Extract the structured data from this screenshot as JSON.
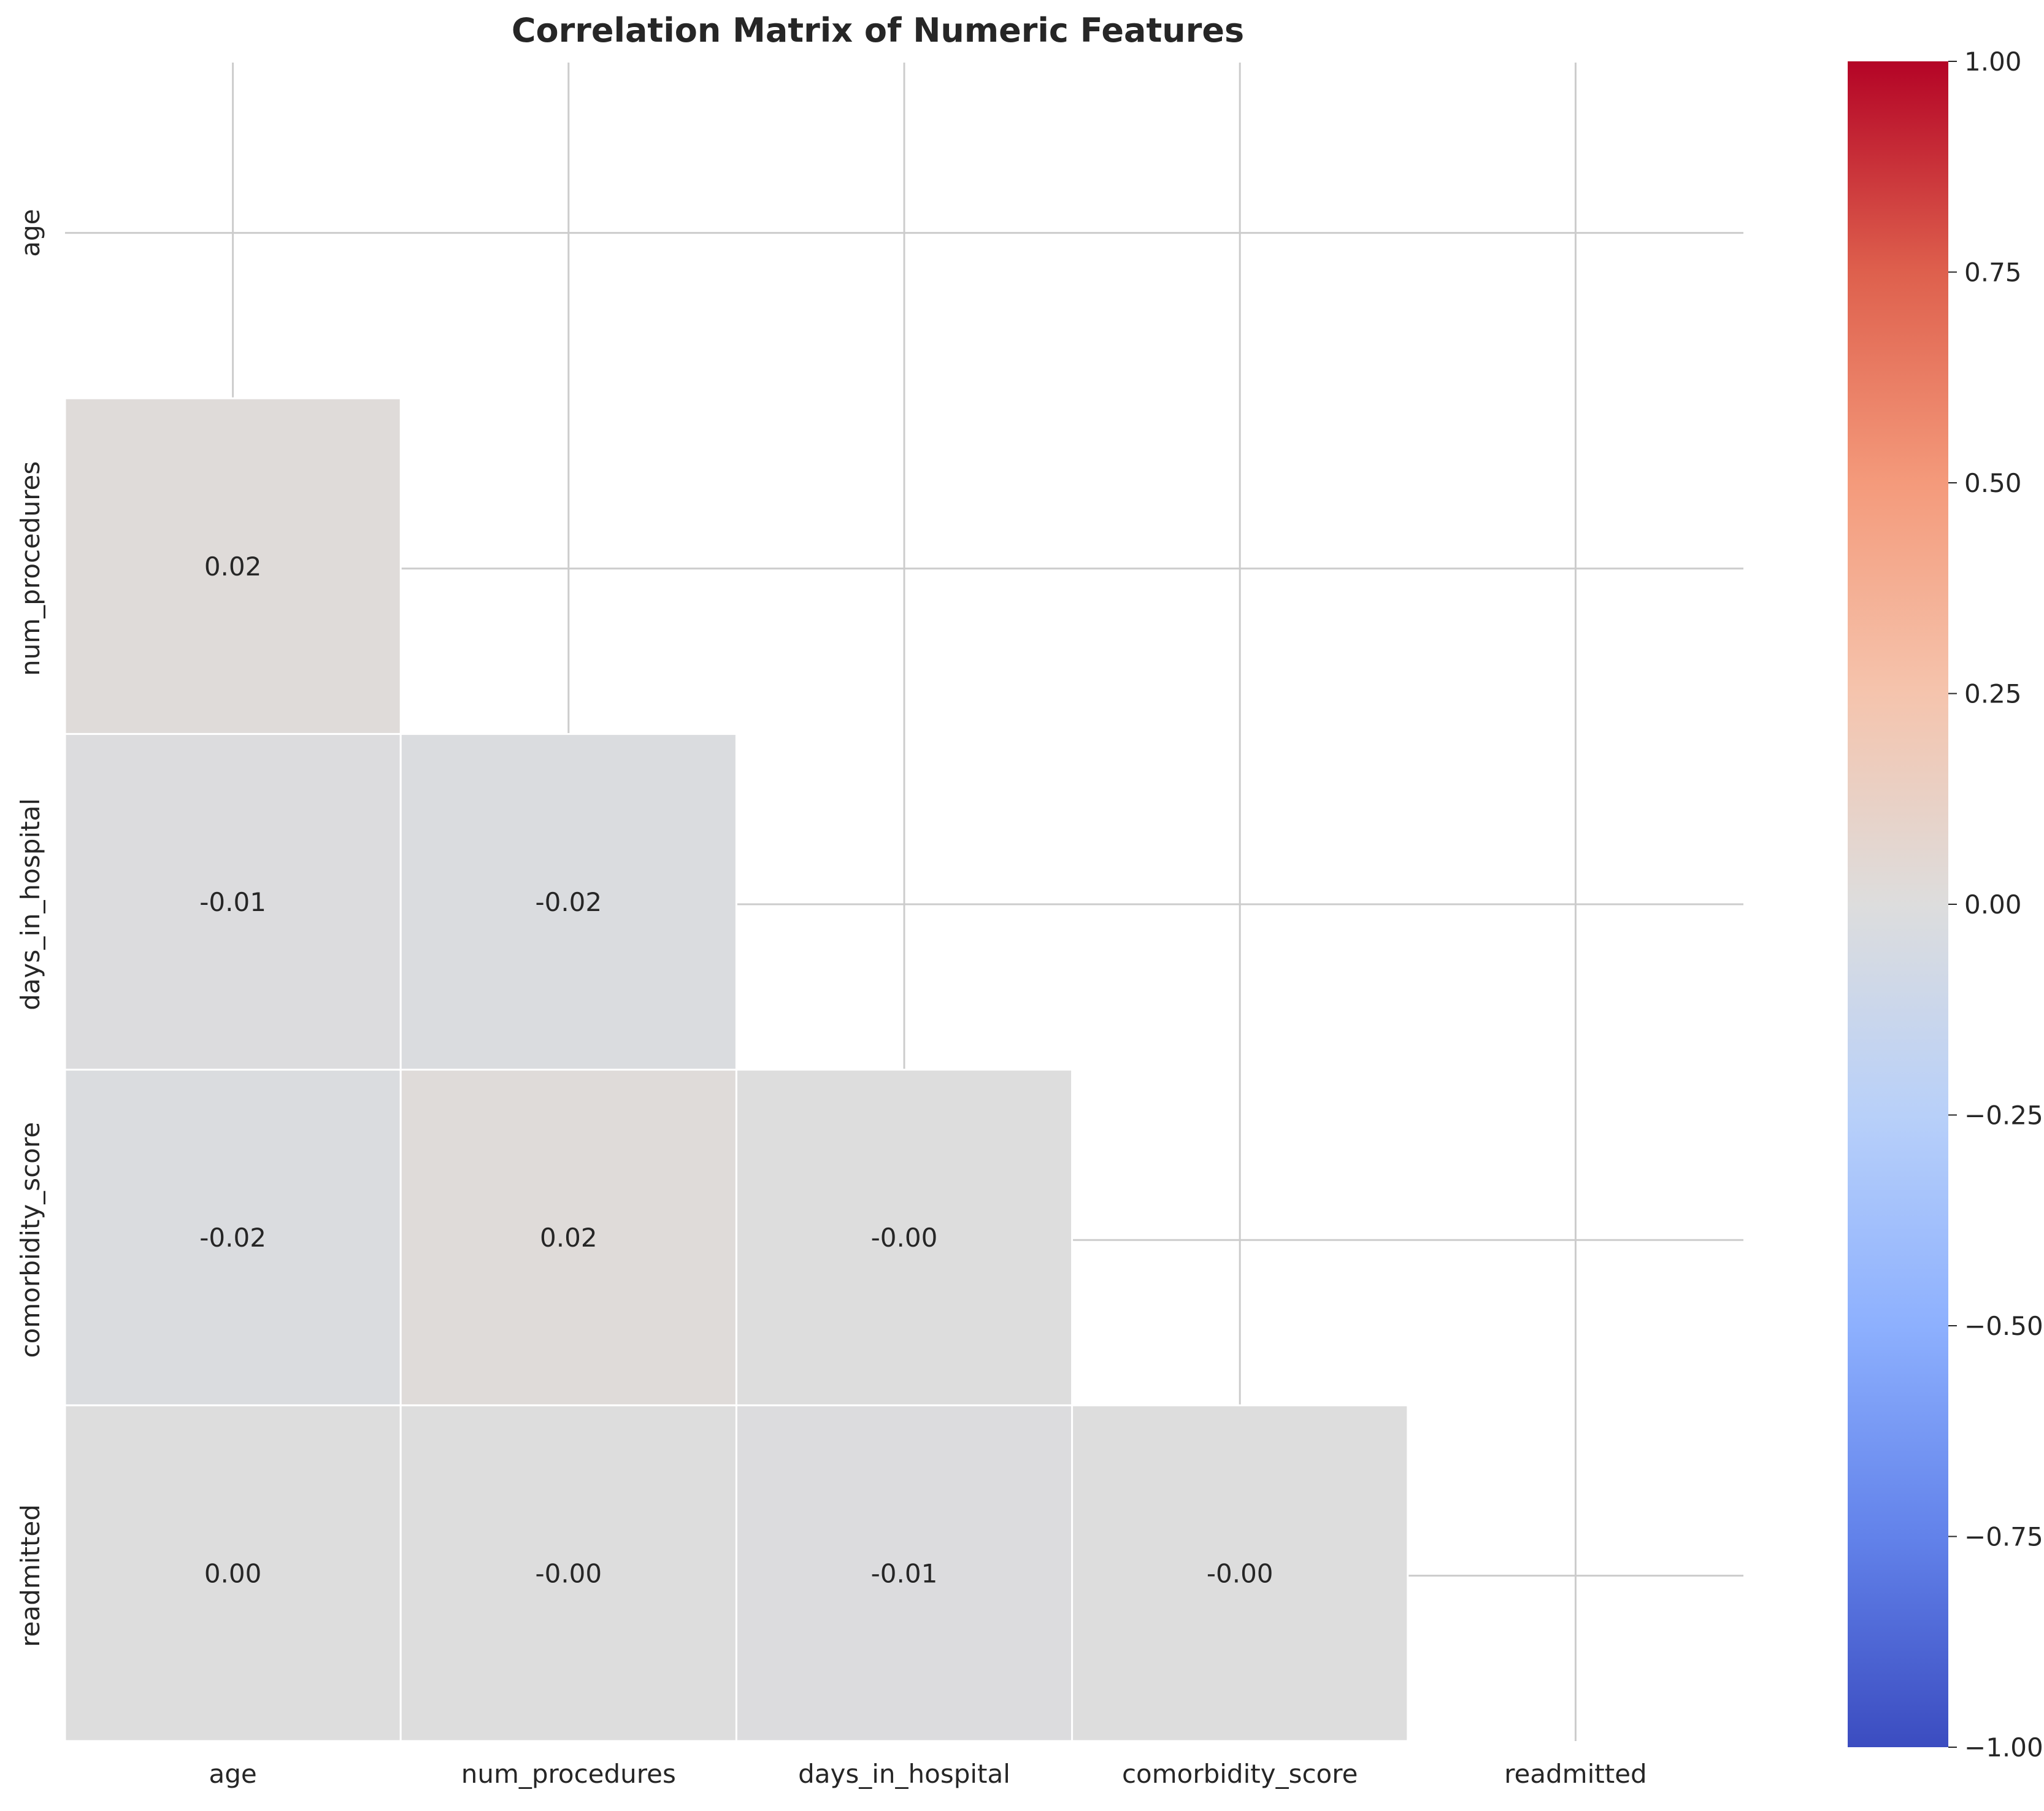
{
  "chart_data": {
    "type": "heatmap",
    "title": "Correlation Matrix of Numeric Features",
    "variables": [
      "age",
      "num_procedures",
      "days_in_hospital",
      "comorbidity_score",
      "readmitted"
    ],
    "mask": "upper-triangle-including-diagonal",
    "cells": [
      {
        "row": 1,
        "col": 0,
        "value": 0.02,
        "label": "0.02"
      },
      {
        "row": 2,
        "col": 0,
        "value": -0.01,
        "label": "-0.01"
      },
      {
        "row": 2,
        "col": 1,
        "value": -0.02,
        "label": "-0.02"
      },
      {
        "row": 3,
        "col": 0,
        "value": -0.02,
        "label": "-0.02"
      },
      {
        "row": 3,
        "col": 1,
        "value": 0.02,
        "label": "0.02"
      },
      {
        "row": 3,
        "col": 2,
        "value": -0.0,
        "label": "-0.00"
      },
      {
        "row": 4,
        "col": 0,
        "value": 0.0,
        "label": "0.00"
      },
      {
        "row": 4,
        "col": 1,
        "value": -0.0,
        "label": "-0.00"
      },
      {
        "row": 4,
        "col": 2,
        "value": -0.01,
        "label": "-0.01"
      },
      {
        "row": 4,
        "col": 3,
        "value": -0.0,
        "label": "-0.00"
      }
    ],
    "colorscale": "coolwarm",
    "vmin": -1.0,
    "vmax": 1.0,
    "colorbar_ticks": [
      "−1.00",
      "−0.75",
      "−0.50",
      "−0.25",
      "0.00",
      "0.25",
      "0.50",
      "0.75",
      "1.00"
    ],
    "grid": true,
    "colorbar_position": "right"
  }
}
